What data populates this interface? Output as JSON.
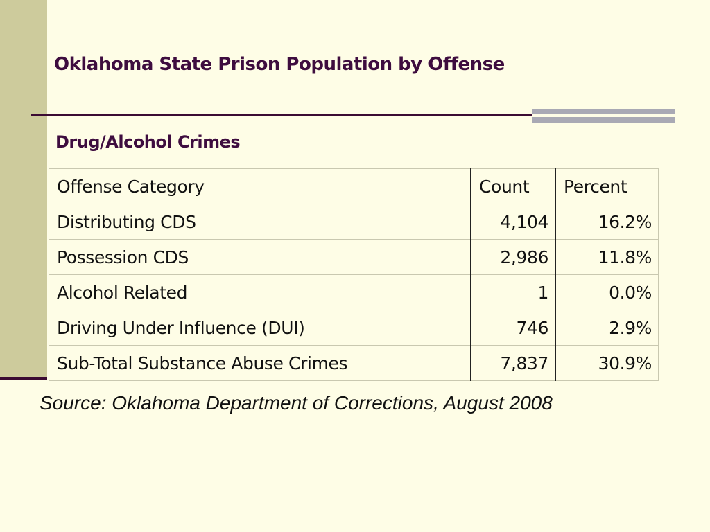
{
  "slide": {
    "title": "Oklahoma State Prison Population by Offense",
    "subtitle": "Drug/Alcohol Crimes",
    "source": "Source:  Oklahoma Department of Corrections, August 2008"
  },
  "table": {
    "headers": [
      "Offense Category",
      "Count",
      "Percent"
    ],
    "rows": [
      [
        "Distributing CDS",
        "4,104",
        "16.2%"
      ],
      [
        "Possession CDS",
        "2,986",
        "11.8%"
      ],
      [
        "Alcohol Related",
        "1",
        "0.0%"
      ],
      [
        "Driving Under Influence (DUI)",
        "746",
        "2.9%"
      ],
      [
        "Sub-Total Substance Abuse Crimes",
        "7,837",
        "30.9%"
      ]
    ]
  },
  "colors": {
    "background": "#fefde6",
    "accent_bar": "#cdcb9c",
    "title_text": "#3e0d3f",
    "rule_dark": "#3b0b33",
    "rule_grey": "#a9a9b4"
  }
}
